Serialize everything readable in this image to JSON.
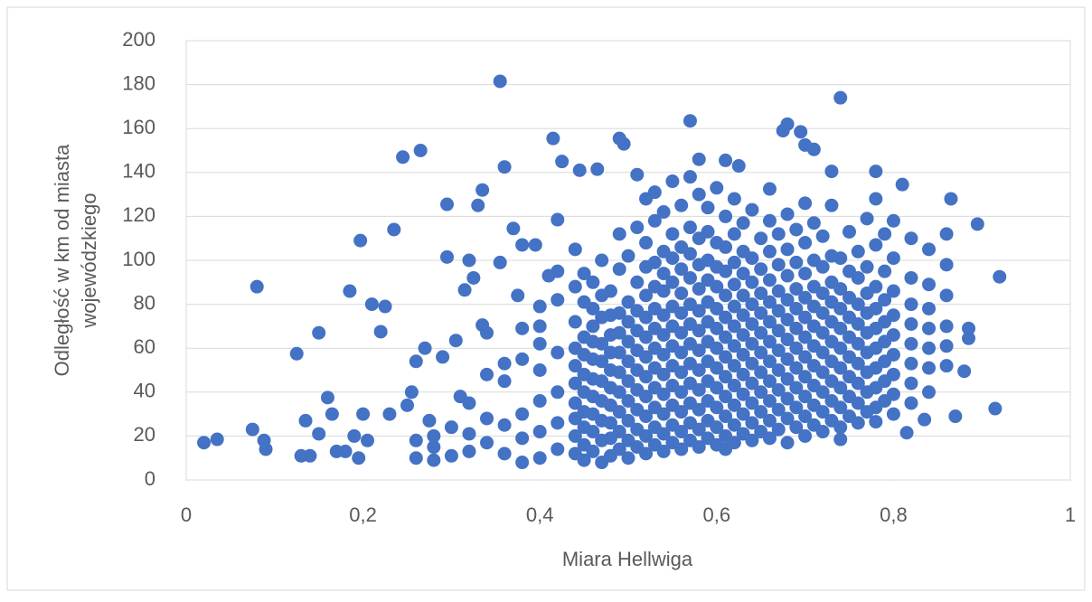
{
  "chart_data": {
    "type": "scatter",
    "x_label": "Miara Hellwiga",
    "y_label": [
      "Odległość w km od miasta",
      "wojewódzkiego"
    ],
    "color": "#4472c4",
    "grid": true,
    "xlim": [
      0,
      1
    ],
    "xticks": [
      0,
      {
        "value": 0.2,
        "label": "0,2"
      },
      {
        "value": 0.4,
        "label": "0,4"
      },
      {
        "value": 0.6,
        "label": "0,6"
      },
      {
        "value": 0.8,
        "label": "0,8"
      },
      1
    ],
    "ylim": [
      0,
      200
    ],
    "yticks": [
      0,
      20,
      40,
      60,
      80,
      100,
      120,
      140,
      160,
      180,
      200
    ],
    "x": [
      0.02,
      0.035,
      0.075,
      0.08,
      0.088,
      0.09,
      0.125,
      0.13,
      0.135,
      0.14,
      0.15,
      0.15,
      0.16,
      0.165,
      0.17,
      0.18,
      0.185,
      0.19,
      0.195,
      0.197,
      0.2,
      0.205,
      0.21,
      0.22,
      0.225,
      0.23,
      0.235,
      0.245,
      0.25,
      0.255,
      0.26,
      0.265,
      0.27,
      0.275,
      0.29,
      0.295,
      0.295,
      0.305,
      0.31,
      0.315,
      0.32,
      0.325,
      0.33,
      0.335,
      0.335,
      0.34,
      0.355,
      0.355,
      0.36,
      0.37,
      0.375,
      0.38,
      0.395,
      0.4,
      0.41,
      0.415,
      0.42,
      0.425,
      0.445,
      0.465,
      0.49,
      0.495,
      0.51,
      0.57,
      0.58,
      0.61,
      0.625,
      0.66,
      0.675,
      0.68,
      0.695,
      0.7,
      0.71,
      0.74,
      0.73,
      0.78,
      0.81,
      0.865,
      0.895,
      0.92,
      0.915,
      0.87,
      0.885,
      0.885,
      0.88,
      0.835,
      0.815,
      0.78,
      0.74,
      0.44,
      0.44,
      0.44,
      0.44,
      0.44,
      0.44,
      0.44,
      0.44,
      0.44,
      0.44,
      0.45,
      0.45,
      0.45,
      0.45,
      0.45,
      0.45,
      0.45,
      0.45,
      0.45,
      0.45,
      0.46,
      0.46,
      0.46,
      0.46,
      0.46,
      0.46,
      0.46,
      0.46,
      0.46,
      0.46,
      0.47,
      0.47,
      0.47,
      0.47,
      0.47,
      0.47,
      0.47,
      0.47,
      0.47,
      0.47,
      0.48,
      0.48,
      0.48,
      0.48,
      0.48,
      0.48,
      0.48,
      0.48,
      0.48,
      0.48,
      0.49,
      0.49,
      0.49,
      0.49,
      0.49,
      0.49,
      0.49,
      0.49,
      0.49,
      0.49,
      0.5,
      0.5,
      0.5,
      0.5,
      0.5,
      0.5,
      0.5,
      0.5,
      0.5,
      0.5,
      0.51,
      0.51,
      0.51,
      0.51,
      0.51,
      0.51,
      0.51,
      0.51,
      0.51,
      0.51,
      0.52,
      0.52,
      0.52,
      0.52,
      0.52,
      0.52,
      0.52,
      0.52,
      0.52,
      0.52,
      0.52,
      0.52,
      0.53,
      0.53,
      0.53,
      0.53,
      0.53,
      0.53,
      0.53,
      0.53,
      0.53,
      0.53,
      0.53,
      0.53,
      0.54,
      0.54,
      0.54,
      0.54,
      0.54,
      0.54,
      0.54,
      0.54,
      0.54,
      0.54,
      0.54,
      0.54,
      0.55,
      0.55,
      0.55,
      0.55,
      0.55,
      0.55,
      0.55,
      0.55,
      0.55,
      0.55,
      0.55,
      0.55,
      0.56,
      0.56,
      0.56,
      0.56,
      0.56,
      0.56,
      0.56,
      0.56,
      0.56,
      0.56,
      0.56,
      0.56,
      0.57,
      0.57,
      0.57,
      0.57,
      0.57,
      0.57,
      0.57,
      0.57,
      0.57,
      0.57,
      0.57,
      0.57,
      0.58,
      0.58,
      0.58,
      0.58,
      0.58,
      0.58,
      0.58,
      0.58,
      0.58,
      0.58,
      0.58,
      0.58,
      0.59,
      0.59,
      0.59,
      0.59,
      0.59,
      0.59,
      0.59,
      0.59,
      0.59,
      0.59,
      0.59,
      0.59,
      0.6,
      0.6,
      0.6,
      0.6,
      0.6,
      0.6,
      0.6,
      0.6,
      0.6,
      0.6,
      0.6,
      0.6,
      0.61,
      0.61,
      0.61,
      0.61,
      0.61,
      0.61,
      0.61,
      0.61,
      0.61,
      0.61,
      0.61,
      0.61,
      0.62,
      0.62,
      0.62,
      0.62,
      0.62,
      0.62,
      0.62,
      0.62,
      0.62,
      0.62,
      0.62,
      0.62,
      0.63,
      0.63,
      0.63,
      0.63,
      0.63,
      0.63,
      0.63,
      0.63,
      0.63,
      0.63,
      0.63,
      0.64,
      0.64,
      0.64,
      0.64,
      0.64,
      0.64,
      0.64,
      0.64,
      0.64,
      0.64,
      0.64,
      0.65,
      0.65,
      0.65,
      0.65,
      0.65,
      0.65,
      0.65,
      0.65,
      0.65,
      0.65,
      0.66,
      0.66,
      0.66,
      0.66,
      0.66,
      0.66,
      0.66,
      0.66,
      0.66,
      0.66,
      0.66,
      0.67,
      0.67,
      0.67,
      0.67,
      0.67,
      0.67,
      0.67,
      0.67,
      0.67,
      0.67,
      0.68,
      0.68,
      0.68,
      0.68,
      0.68,
      0.68,
      0.68,
      0.68,
      0.68,
      0.68,
      0.68,
      0.69,
      0.69,
      0.69,
      0.69,
      0.69,
      0.69,
      0.69,
      0.69,
      0.69,
      0.69,
      0.7,
      0.7,
      0.7,
      0.7,
      0.7,
      0.7,
      0.7,
      0.7,
      0.7,
      0.7,
      0.7,
      0.71,
      0.71,
      0.71,
      0.71,
      0.71,
      0.71,
      0.71,
      0.71,
      0.71,
      0.71,
      0.72,
      0.72,
      0.72,
      0.72,
      0.72,
      0.72,
      0.72,
      0.72,
      0.72,
      0.72,
      0.73,
      0.73,
      0.73,
      0.73,
      0.73,
      0.73,
      0.73,
      0.73,
      0.73,
      0.73,
      0.74,
      0.74,
      0.74,
      0.74,
      0.74,
      0.74,
      0.74,
      0.74,
      0.74,
      0.75,
      0.75,
      0.75,
      0.75,
      0.75,
      0.75,
      0.75,
      0.75,
      0.75,
      0.76,
      0.76,
      0.76,
      0.76,
      0.76,
      0.76,
      0.76,
      0.76,
      0.76,
      0.77,
      0.77,
      0.77,
      0.77,
      0.77,
      0.77,
      0.77,
      0.77,
      0.77,
      0.78,
      0.78,
      0.78,
      0.78,
      0.78,
      0.78,
      0.78,
      0.78,
      0.78,
      0.79,
      0.79,
      0.79,
      0.79,
      0.79,
      0.79,
      0.79,
      0.79,
      0.8,
      0.8,
      0.8,
      0.8,
      0.8,
      0.8,
      0.8,
      0.8,
      0.8,
      0.82,
      0.82,
      0.82,
      0.82,
      0.82,
      0.82,
      0.82,
      0.82,
      0.84,
      0.84,
      0.84,
      0.84,
      0.84,
      0.84,
      0.84,
      0.86,
      0.86,
      0.86,
      0.86,
      0.86,
      0.86,
      0.26,
      0.26,
      0.28,
      0.28,
      0.28,
      0.3,
      0.3,
      0.32,
      0.32,
      0.32,
      0.34,
      0.34,
      0.34,
      0.36,
      0.36,
      0.36,
      0.36,
      0.38,
      0.38,
      0.38,
      0.38,
      0.38,
      0.4,
      0.4,
      0.4,
      0.4,
      0.4,
      0.4,
      0.42,
      0.42,
      0.42,
      0.42,
      0.42,
      0.42
    ],
    "values": [
      17,
      18.5,
      23,
      88,
      18,
      14,
      57.5,
      11,
      27,
      11,
      67,
      21,
      37.5,
      30,
      13,
      13,
      86,
      20,
      10,
      109,
      30,
      18,
      80,
      67.5,
      79,
      30,
      114,
      147,
      34,
      40,
      54,
      150,
      60,
      27,
      56,
      125.5,
      101.5,
      63.5,
      38,
      86.5,
      100,
      92,
      125,
      70.5,
      132,
      67,
      181.5,
      99,
      142.5,
      114.5,
      84,
      107,
      107,
      79,
      93,
      155.5,
      118.5,
      145,
      141,
      141.5,
      155.5,
      153,
      139,
      163.5,
      146,
      145.5,
      143,
      132.5,
      159,
      162,
      158.5,
      152.5,
      150.5,
      174,
      140.5,
      140.5,
      134.5,
      128,
      116.5,
      92.5,
      32.5,
      29,
      64.5,
      69,
      49.5,
      27.5,
      21.5,
      26.5,
      18.5,
      12,
      20,
      28,
      35,
      44,
      52,
      60,
      72,
      88,
      105,
      9,
      16,
      24,
      31,
      40,
      48,
      57,
      65,
      81,
      94,
      13,
      22,
      30,
      38,
      46,
      55,
      63,
      70,
      78,
      90,
      8,
      18,
      27,
      36,
      45,
      54,
      62,
      74,
      84,
      100,
      11,
      19,
      26,
      34,
      42,
      50,
      58,
      66,
      75,
      86,
      14,
      22,
      31,
      40,
      49,
      58,
      67,
      76,
      96,
      112,
      10,
      18,
      27,
      36,
      45,
      54,
      63,
      72,
      81,
      102,
      15,
      23,
      32,
      41,
      50,
      59,
      68,
      77,
      90,
      115,
      12,
      20,
      29,
      38,
      47,
      56,
      65,
      74,
      84,
      97,
      108,
      128,
      16,
      24,
      33,
      42,
      51,
      60,
      69,
      78,
      88,
      99,
      118,
      131,
      13,
      21,
      30,
      39,
      48,
      57,
      66,
      75,
      86,
      94,
      104,
      122,
      17,
      25,
      34,
      43,
      52,
      61,
      70,
      79,
      90,
      101,
      112,
      136,
      14,
      22,
      31,
      40,
      49,
      58,
      67,
      76,
      85,
      96,
      106,
      125,
      18,
      26,
      35,
      44,
      53,
      62,
      71,
      80,
      92,
      103,
      115,
      138,
      15,
      23,
      32,
      41,
      50,
      59,
      68,
      77,
      87,
      98,
      110,
      130,
      19,
      27,
      36,
      45,
      54,
      63,
      72,
      81,
      91,
      100,
      113,
      124,
      16,
      24,
      33,
      42,
      51,
      60,
      69,
      78,
      88,
      97,
      108,
      133,
      14,
      20,
      29,
      38,
      47,
      56,
      65,
      74,
      84,
      95,
      106,
      120,
      17,
      25,
      34,
      43,
      52,
      61,
      70,
      79,
      89,
      99,
      112,
      128,
      21,
      30,
      39,
      48,
      57,
      66,
      75,
      84,
      94,
      104,
      117,
      18,
      26,
      35,
      44,
      53,
      62,
      71,
      80,
      90,
      101,
      123,
      22,
      31,
      40,
      49,
      58,
      67,
      76,
      85,
      96,
      110,
      19,
      27,
      36,
      45,
      54,
      63,
      72,
      81,
      91,
      104,
      118,
      23,
      32,
      41,
      50,
      59,
      68,
      77,
      86,
      98,
      112,
      17,
      28,
      37,
      46,
      55,
      64,
      73,
      82,
      93,
      105,
      121,
      24,
      33,
      42,
      51,
      60,
      69,
      78,
      87,
      99,
      114,
      20,
      29,
      38,
      47,
      56,
      65,
      74,
      83,
      94,
      108,
      126,
      25,
      34,
      43,
      52,
      61,
      70,
      79,
      88,
      100,
      117,
      22,
      31,
      40,
      49,
      58,
      67,
      76,
      85,
      97,
      111,
      27,
      36,
      45,
      54,
      63,
      72,
      81,
      90,
      102,
      125,
      24,
      33,
      42,
      51,
      60,
      69,
      78,
      87,
      101,
      29,
      38,
      47,
      56,
      65,
      74,
      83,
      95,
      113,
      26,
      35,
      44,
      53,
      62,
      71,
      80,
      92,
      104,
      31,
      40,
      49,
      58,
      67,
      76,
      85,
      97,
      119,
      33,
      42,
      51,
      60,
      69,
      78,
      88,
      107,
      128,
      36,
      45,
      54,
      63,
      72,
      82,
      95,
      112,
      30,
      39,
      48,
      57,
      66,
      75,
      86,
      101,
      118,
      35,
      44,
      53,
      62,
      71,
      80,
      92,
      110,
      40,
      51,
      60,
      69,
      78,
      89,
      105,
      52,
      61,
      70,
      84,
      98,
      112,
      10,
      18,
      9,
      15,
      20,
      11,
      24,
      13,
      21,
      35,
      17,
      28,
      48,
      12,
      25,
      45,
      53,
      8,
      19,
      30,
      55,
      69,
      10,
      22,
      36,
      50,
      62,
      70,
      14,
      26,
      40,
      58,
      82,
      95
    ]
  }
}
